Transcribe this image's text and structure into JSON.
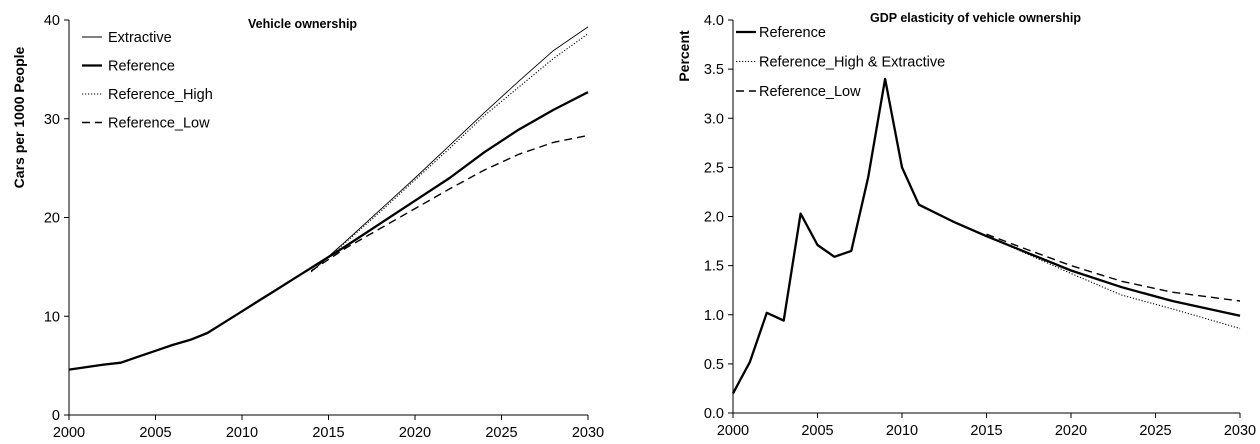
{
  "chart_data": [
    {
      "type": "line",
      "title": "Vehicle ownership",
      "xlabel": "",
      "ylabel": "Cars per 1000 People",
      "xlim": [
        2000,
        2030
      ],
      "ylim": [
        0,
        40
      ],
      "xticks": [
        2000,
        2005,
        2010,
        2015,
        2020,
        2025,
        2030
      ],
      "yticks": [
        0,
        10,
        20,
        30,
        40
      ],
      "grid": false,
      "legend_position": "top-left",
      "series": [
        {
          "name": "Extractive",
          "style": "thin-solid",
          "color": "#000000",
          "x": [
            2014,
            2016,
            2018,
            2020,
            2022,
            2024,
            2026,
            2028,
            2030
          ],
          "y": [
            14.5,
            17.6,
            20.8,
            24.0,
            27.3,
            30.6,
            33.8,
            36.9,
            39.3
          ]
        },
        {
          "name": "Reference",
          "style": "thick-solid",
          "color": "#000000",
          "x": [
            2000,
            2002,
            2003,
            2004,
            2005,
            2006,
            2007,
            2008,
            2009,
            2010,
            2011,
            2012,
            2013,
            2014,
            2015,
            2016,
            2018,
            2020,
            2022,
            2024,
            2026,
            2028,
            2030
          ],
          "y": [
            4.6,
            5.1,
            5.3,
            5.9,
            6.5,
            7.1,
            7.6,
            8.3,
            9.4,
            10.5,
            11.6,
            12.7,
            13.8,
            14.9,
            16.0,
            17.1,
            19.4,
            21.7,
            24.0,
            26.6,
            28.9,
            30.9,
            32.7
          ]
        },
        {
          "name": "Reference_High",
          "style": "dotted",
          "color": "#000000",
          "x": [
            2014,
            2016,
            2018,
            2020,
            2022,
            2024,
            2026,
            2028,
            2030
          ],
          "y": [
            14.5,
            17.5,
            20.6,
            23.8,
            27.0,
            30.3,
            33.2,
            36.1,
            38.6
          ]
        },
        {
          "name": "Reference_Low",
          "style": "dashed",
          "color": "#000000",
          "x": [
            2014,
            2016,
            2018,
            2020,
            2022,
            2024,
            2026,
            2028,
            2030
          ],
          "y": [
            14.6,
            16.9,
            18.9,
            20.9,
            22.9,
            24.8,
            26.4,
            27.6,
            28.3
          ]
        }
      ]
    },
    {
      "type": "line",
      "title": "GDP elasticity of vehicle ownership",
      "xlabel": "",
      "ylabel": "Percent",
      "xlim": [
        2000,
        2030
      ],
      "ylim": [
        0.0,
        4.0
      ],
      "xticks": [
        2000,
        2005,
        2010,
        2015,
        2020,
        2025,
        2030
      ],
      "yticks": [
        "0.0",
        "0.5",
        "1.0",
        "1.5",
        "2.0",
        "2.5",
        "3.0",
        "3.5",
        "4.0"
      ],
      "grid": false,
      "legend_position": "top-left",
      "series": [
        {
          "name": "Reference",
          "style": "thick-solid",
          "color": "#000000",
          "x": [
            2000,
            2001,
            2002,
            2003,
            2004,
            2005,
            2006,
            2007,
            2008,
            2009,
            2010,
            2011,
            2013,
            2015,
            2017,
            2020,
            2023,
            2026,
            2030
          ],
          "y": [
            0.2,
            0.52,
            1.02,
            0.94,
            2.03,
            1.71,
            1.59,
            1.65,
            2.4,
            3.4,
            2.5,
            2.12,
            1.95,
            1.8,
            1.66,
            1.45,
            1.28,
            1.14,
            0.99
          ]
        },
        {
          "name": "Reference_High & Extractive",
          "style": "dotted",
          "color": "#000000",
          "x": [
            2015,
            2017,
            2020,
            2023,
            2026,
            2030
          ],
          "y": [
            1.8,
            1.65,
            1.42,
            1.2,
            1.06,
            0.86
          ]
        },
        {
          "name": "Reference_Low",
          "style": "dashed",
          "color": "#000000",
          "x": [
            2015,
            2017,
            2020,
            2023,
            2026,
            2030
          ],
          "y": [
            1.82,
            1.69,
            1.5,
            1.34,
            1.23,
            1.14
          ]
        }
      ]
    }
  ]
}
